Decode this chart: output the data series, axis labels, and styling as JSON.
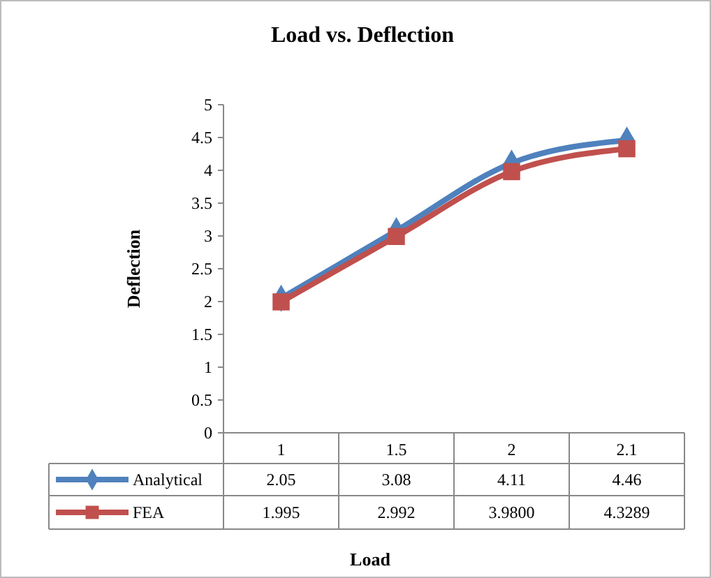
{
  "chart_data": {
    "type": "line",
    "title": "Load vs. Deflection",
    "xlabel": "Load",
    "ylabel": "Deflection",
    "categories": [
      "1",
      "1.5",
      "2",
      "2.1"
    ],
    "series": [
      {
        "name": "Analytical",
        "color": "#4f81bd",
        "marker": "diamond",
        "values": [
          2.05,
          3.08,
          4.11,
          4.46
        ],
        "value_labels": [
          "2.05",
          "3.08",
          "4.11",
          "4.46"
        ]
      },
      {
        "name": "FEA",
        "color": "#c0504d",
        "marker": "square",
        "values": [
          1.995,
          2.992,
          3.98,
          4.3289
        ],
        "value_labels": [
          "1.995",
          "2.992",
          "3.9800",
          "4.3289"
        ]
      }
    ],
    "ylim": [
      0,
      5
    ],
    "yticks": [
      0,
      0.5,
      1,
      1.5,
      2,
      2.5,
      3,
      3.5,
      4,
      4.5,
      5
    ],
    "grid": false,
    "legend": "bottom",
    "line_style": "solid"
  }
}
